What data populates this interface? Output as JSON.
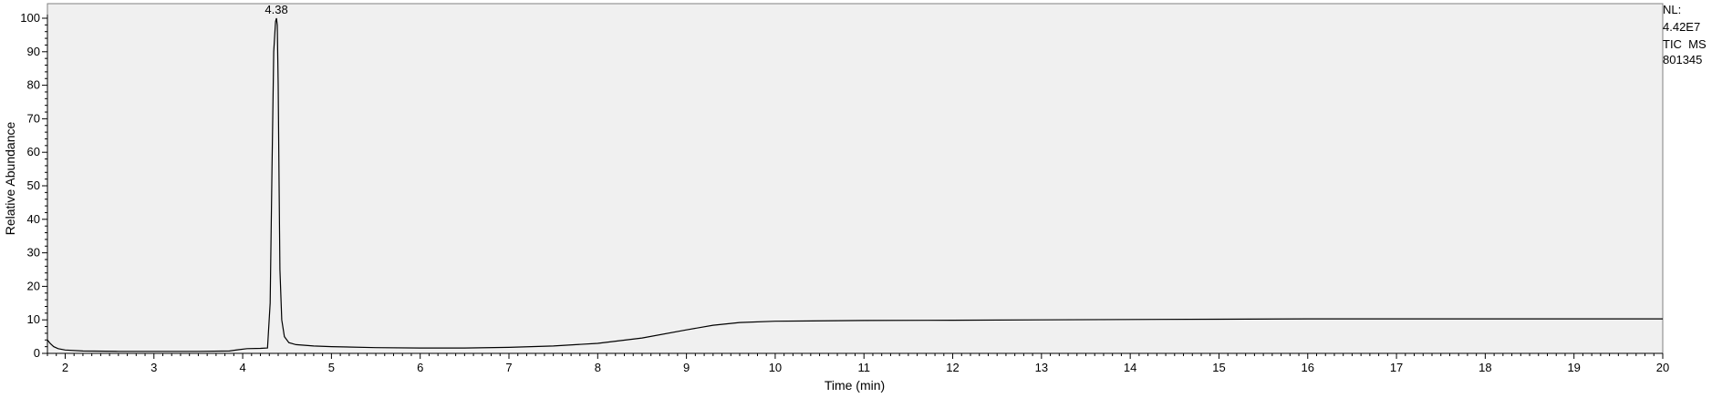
{
  "chart_data": {
    "type": "line",
    "title": "",
    "xlabel": "Time (min)",
    "ylabel": "Relative Abundance",
    "xlim": [
      1.8,
      20
    ],
    "ylim": [
      0,
      100
    ],
    "x_ticks": [
      "2",
      "3",
      "4",
      "5",
      "6",
      "7",
      "8",
      "9",
      "10",
      "11",
      "12",
      "13",
      "14",
      "15",
      "16",
      "17",
      "18",
      "19",
      "20"
    ],
    "y_ticks": [
      "0",
      "10",
      "20",
      "30",
      "40",
      "50",
      "60",
      "70",
      "80",
      "90",
      "100"
    ],
    "grid": false,
    "background_color": "#f0f0f0",
    "line_color": "#000000",
    "peak_labels": [
      {
        "x": 4.38,
        "y": 100,
        "label": "4.38"
      }
    ],
    "series": [
      {
        "points": [
          [
            1.8,
            4.0
          ],
          [
            1.83,
            3.0
          ],
          [
            1.87,
            2.0
          ],
          [
            1.92,
            1.4
          ],
          [
            2.0,
            1.0
          ],
          [
            2.2,
            0.7
          ],
          [
            2.6,
            0.6
          ],
          [
            3.0,
            0.6
          ],
          [
            3.5,
            0.6
          ],
          [
            3.85,
            0.7
          ],
          [
            3.95,
            1.1
          ],
          [
            4.05,
            1.4
          ],
          [
            4.2,
            1.5
          ],
          [
            4.28,
            1.6
          ],
          [
            4.31,
            15
          ],
          [
            4.33,
            55
          ],
          [
            4.35,
            90
          ],
          [
            4.37,
            99
          ],
          [
            4.38,
            100
          ],
          [
            4.39,
            98
          ],
          [
            4.4,
            80
          ],
          [
            4.41,
            50
          ],
          [
            4.42,
            25
          ],
          [
            4.44,
            10
          ],
          [
            4.47,
            5
          ],
          [
            4.52,
            3.2
          ],
          [
            4.6,
            2.6
          ],
          [
            4.8,
            2.2
          ],
          [
            5.0,
            2.0
          ],
          [
            5.5,
            1.7
          ],
          [
            6.0,
            1.6
          ],
          [
            6.5,
            1.6
          ],
          [
            7.0,
            1.8
          ],
          [
            7.5,
            2.2
          ],
          [
            8.0,
            3.0
          ],
          [
            8.5,
            4.6
          ],
          [
            9.0,
            7.0
          ],
          [
            9.3,
            8.4
          ],
          [
            9.6,
            9.2
          ],
          [
            10.0,
            9.6
          ],
          [
            11.0,
            9.8
          ],
          [
            12.0,
            9.9
          ],
          [
            13.0,
            10.0
          ],
          [
            14.0,
            10.1
          ],
          [
            15.0,
            10.2
          ],
          [
            16.0,
            10.3
          ],
          [
            17.0,
            10.3
          ],
          [
            18.0,
            10.3
          ],
          [
            19.0,
            10.3
          ],
          [
            20.0,
            10.3
          ]
        ]
      }
    ]
  },
  "nl_block": {
    "line1": "NL:",
    "line2": "4.42E7",
    "line3": "TIC  MS",
    "line4": "801345"
  }
}
